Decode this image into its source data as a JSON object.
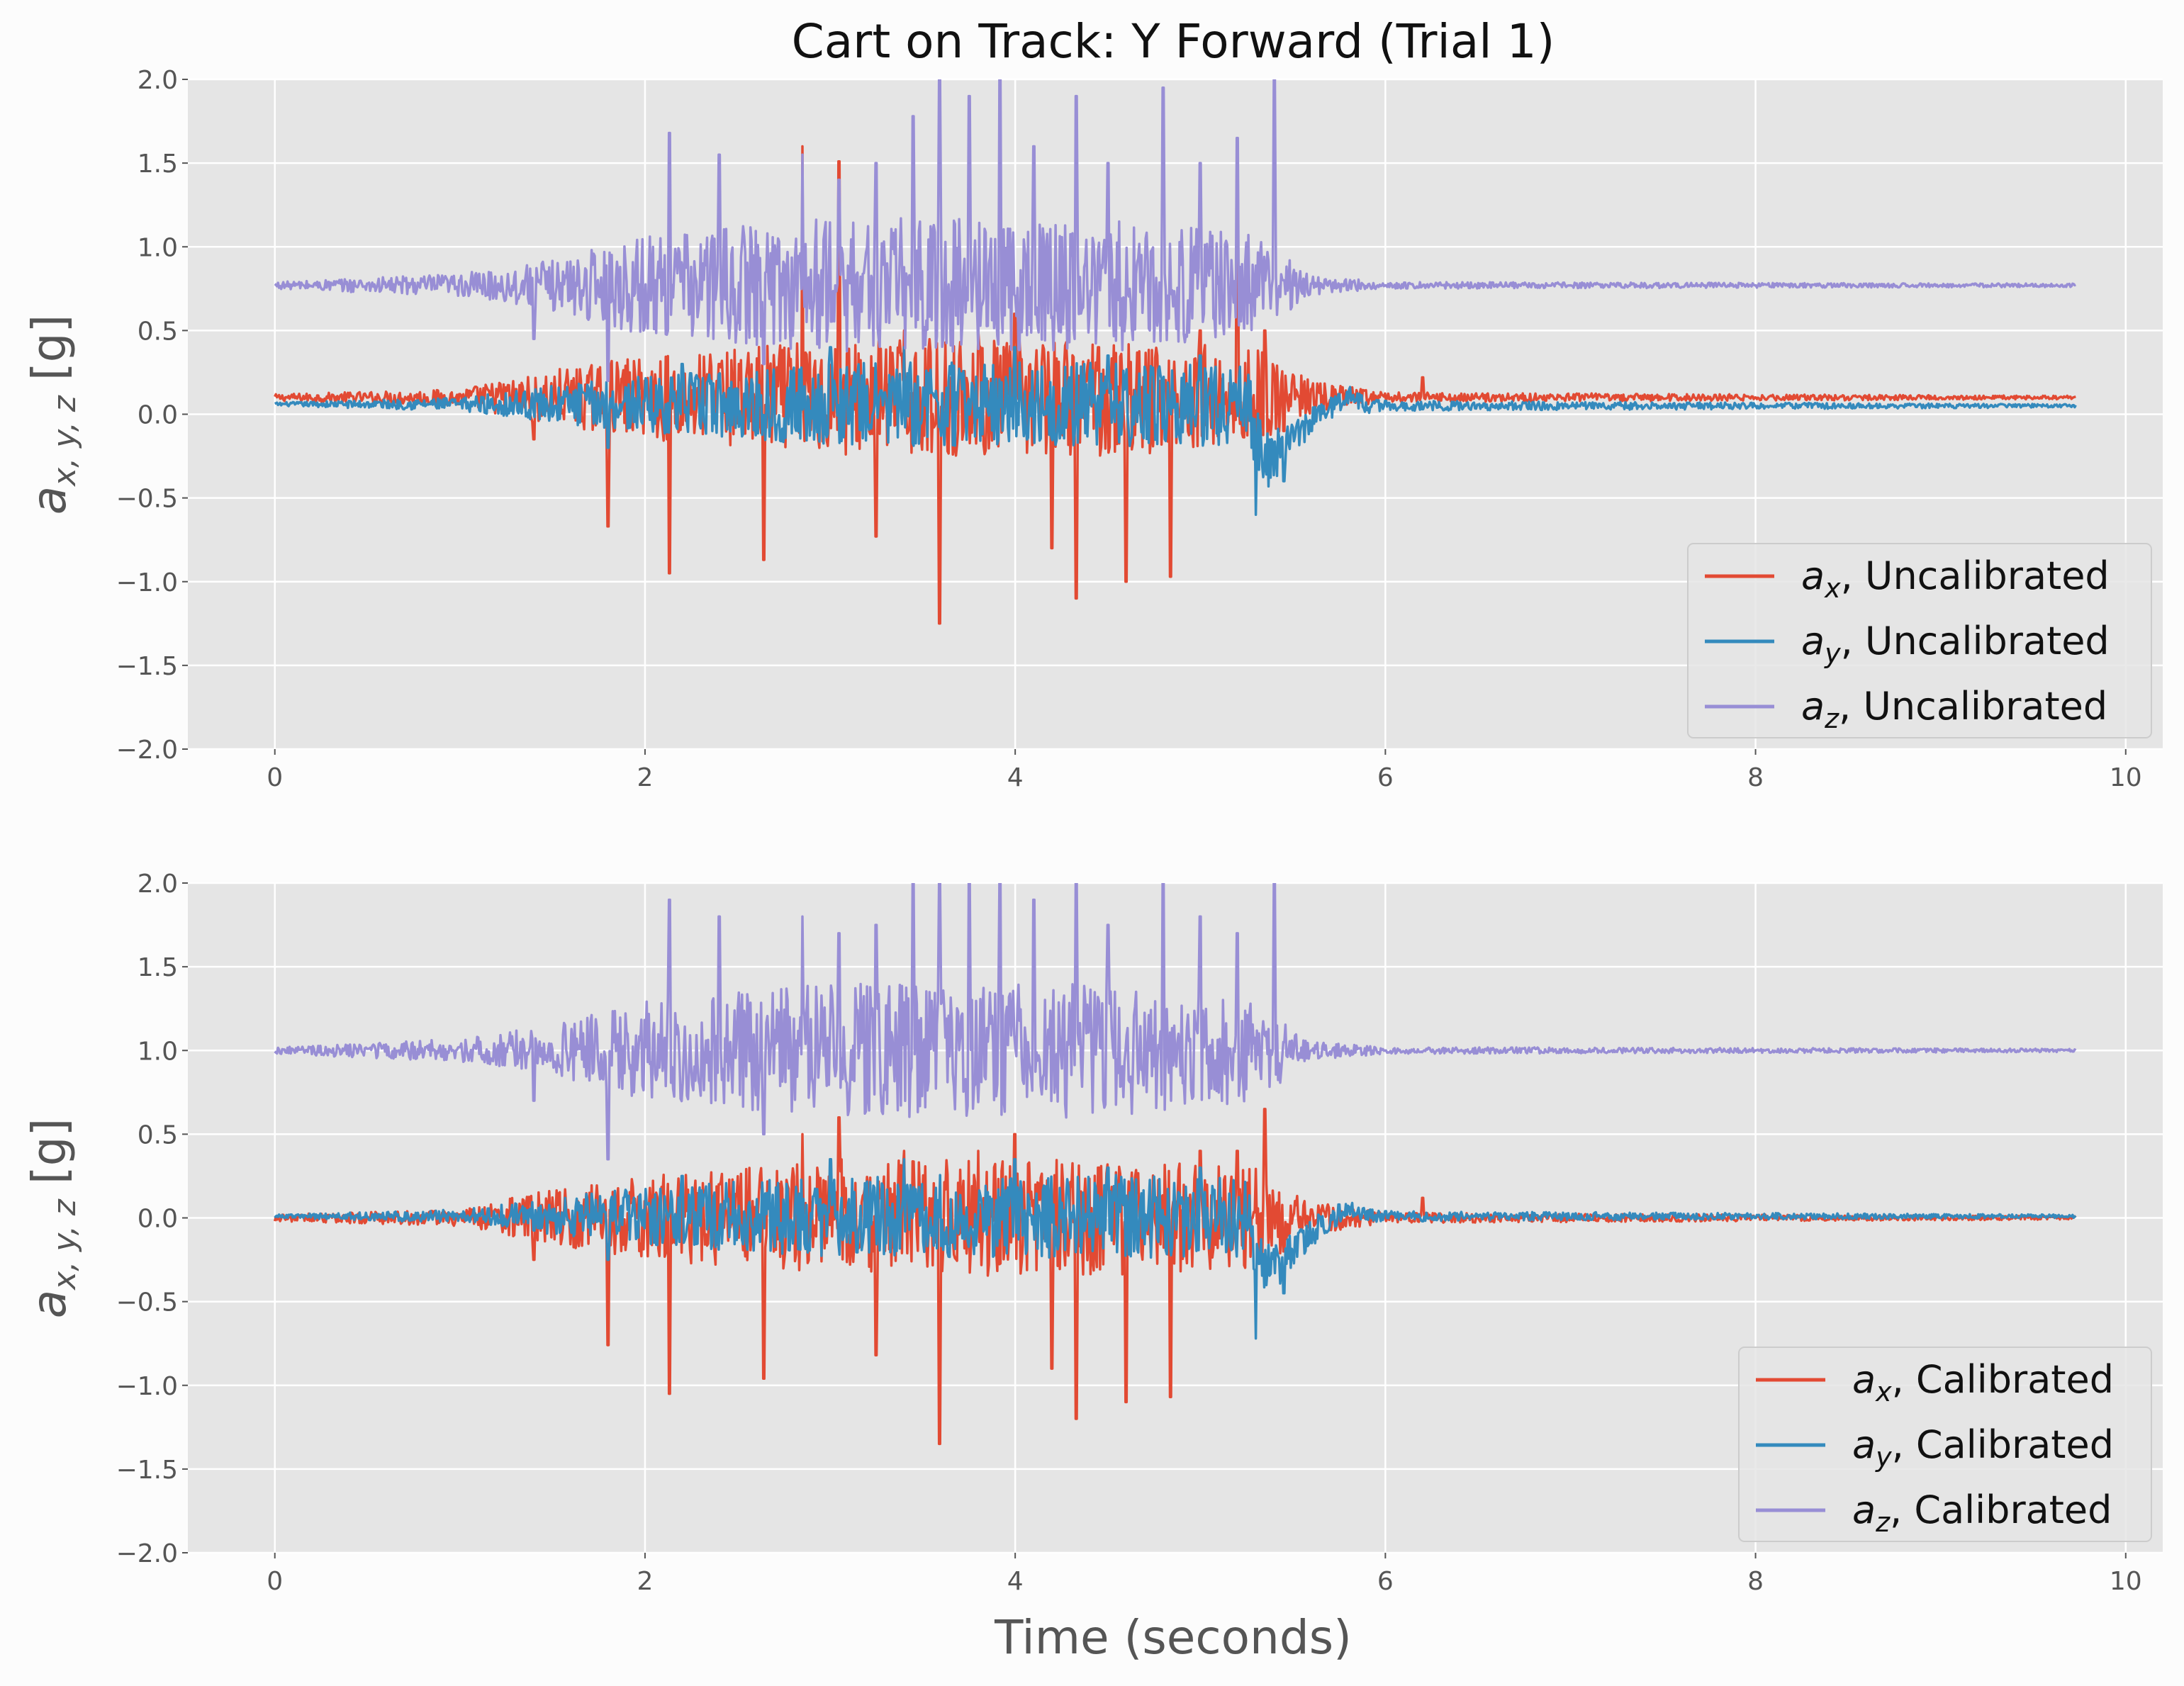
{
  "chart_data": [
    {
      "type": "line",
      "title": "Cart on Track: Y Forward (Trial 1)",
      "xlabel": "",
      "ylabel": "a_{x,y,z} [g]",
      "xlim": [
        -0.47,
        10.2
      ],
      "ylim": [
        -2.0,
        2.0
      ],
      "xticks": [
        0,
        2,
        4,
        6,
        8,
        10
      ],
      "yticks": [
        -2.0,
        -1.5,
        -1.0,
        -0.5,
        0.0,
        0.5,
        1.0,
        1.5,
        2.0
      ],
      "xtick_labels": [
        "0",
        "2",
        "4",
        "6",
        "8",
        "10"
      ],
      "ytick_labels": [
        "−2.0",
        "−1.5",
        "−1.0",
        "−0.5",
        "0.0",
        "0.5",
        "1.0",
        "1.5",
        "2.0"
      ],
      "grid": true,
      "legend_position": "lower-right",
      "series": [
        {
          "name": "a_x, Uncalibrated",
          "legend_main": "a",
          "legend_sub": "x",
          "legend_rest": ", Uncalibrated",
          "color": "#E24A33",
          "x": [
            0,
            0.5,
            1.0,
            1.3,
            1.4,
            1.7,
            1.8,
            2.0,
            2.13,
            2.4,
            2.64,
            2.85,
            3.05,
            3.25,
            3.4,
            3.59,
            3.8,
            4.0,
            4.2,
            4.33,
            4.45,
            4.6,
            4.84,
            5.0,
            5.2,
            5.35,
            5.45,
            5.6,
            5.8,
            6.1,
            6.2,
            6.5,
            7,
            8,
            9,
            9.73
          ],
          "y": [
            0.1,
            0.1,
            0.12,
            0.15,
            -0.15,
            0.25,
            -0.67,
            0.2,
            -0.95,
            0.3,
            -0.87,
            1.6,
            1.51,
            -0.73,
            0.5,
            -1.25,
            0.5,
            0.6,
            -0.8,
            -1.1,
            0.4,
            -1.0,
            -0.97,
            0.5,
            1.43,
            0.5,
            -0.1,
            0.15,
            0.1,
            0.1,
            0.22,
            0.1,
            0.1,
            0.1,
            0.1,
            0.1
          ],
          "amplitude_envelope": [
            [
              0,
              0.02
            ],
            [
              1.0,
              0.05
            ],
            [
              1.4,
              0.15
            ],
            [
              2.0,
              0.25
            ],
            [
              3.0,
              0.35
            ],
            [
              4.5,
              0.35
            ],
            [
              5.3,
              0.3
            ],
            [
              5.6,
              0.1
            ],
            [
              6.0,
              0.03
            ],
            [
              9.73,
              0.01
            ]
          ]
        },
        {
          "name": "a_y, Uncalibrated",
          "legend_main": "a",
          "legend_sub": "y",
          "legend_rest": ", Uncalibrated",
          "color": "#348ABD",
          "x": [
            0,
            1.0,
            1.8,
            2.2,
            3.0,
            3.4,
            4.0,
            4.5,
            5.0,
            5.3,
            5.45,
            5.6,
            5.75,
            6.0,
            6.2,
            7,
            8,
            9,
            9.73
          ],
          "y": [
            0.06,
            0.06,
            -0.2,
            0.3,
            0.4,
            0.4,
            0.4,
            0.35,
            0.35,
            -0.6,
            -0.4,
            -0.1,
            0.12,
            0.08,
            0.03,
            0.05,
            0.05,
            0.05,
            0.05
          ],
          "amplitude_envelope": [
            [
              0,
              0.01
            ],
            [
              1.0,
              0.04
            ],
            [
              1.8,
              0.15
            ],
            [
              3.0,
              0.25
            ],
            [
              5.2,
              0.25
            ],
            [
              5.5,
              0.1
            ],
            [
              6.0,
              0.03
            ],
            [
              9.73,
              0.01
            ]
          ]
        },
        {
          "name": "a_z, Uncalibrated",
          "legend_main": "a",
          "legend_sub": "z",
          "legend_rest": ", Uncalibrated",
          "color": "#988ED5",
          "x": [
            0,
            0.5,
            1.0,
            1.4,
            1.8,
            2.13,
            2.4,
            2.64,
            2.85,
            3.05,
            3.25,
            3.45,
            3.59,
            3.75,
            3.92,
            4.1,
            4.33,
            4.5,
            4.8,
            5.0,
            5.2,
            5.4,
            5.45,
            5.6,
            6.0,
            7,
            8,
            9,
            9.73
          ],
          "y": [
            0.77,
            0.78,
            0.8,
            0.45,
            0.2,
            1.68,
            1.55,
            0.3,
            1.55,
            1.4,
            1.5,
            1.78,
            2.0,
            1.9,
            2.0,
            1.6,
            1.9,
            1.5,
            1.95,
            1.5,
            1.65,
            2.0,
            0.8,
            0.78,
            0.77,
            0.77,
            0.77,
            0.77,
            0.77
          ],
          "amplitude_envelope": [
            [
              0,
              0.02
            ],
            [
              1.0,
              0.07
            ],
            [
              1.5,
              0.15
            ],
            [
              2.0,
              0.3
            ],
            [
              3.0,
              0.4
            ],
            [
              4.5,
              0.4
            ],
            [
              5.3,
              0.3
            ],
            [
              5.6,
              0.06
            ],
            [
              6.0,
              0.02
            ],
            [
              9.73,
              0.01
            ]
          ]
        }
      ]
    },
    {
      "type": "line",
      "title": "",
      "xlabel": "Time (seconds)",
      "ylabel": "a_{x,y,z} [g]",
      "xlim": [
        -0.47,
        10.2
      ],
      "ylim": [
        -2.0,
        2.0
      ],
      "xticks": [
        0,
        2,
        4,
        6,
        8,
        10
      ],
      "yticks": [
        -2.0,
        -1.5,
        -1.0,
        -0.5,
        0.0,
        0.5,
        1.0,
        1.5,
        2.0
      ],
      "xtick_labels": [
        "0",
        "2",
        "4",
        "6",
        "8",
        "10"
      ],
      "ytick_labels": [
        "−2.0",
        "−1.5",
        "−1.0",
        "−0.5",
        "0.0",
        "0.5",
        "1.0",
        "1.5",
        "2.0"
      ],
      "grid": true,
      "legend_position": "lower-right",
      "series": [
        {
          "name": "a_x, Calibrated",
          "legend_main": "a",
          "legend_sub": "x",
          "legend_rest": ", Calibrated",
          "color": "#E24A33",
          "x": [
            0,
            0.5,
            1.0,
            1.3,
            1.4,
            1.7,
            1.8,
            2.0,
            2.13,
            2.4,
            2.64,
            2.85,
            3.05,
            3.25,
            3.4,
            3.59,
            3.8,
            4.0,
            4.2,
            4.33,
            4.45,
            4.6,
            4.84,
            5.0,
            5.2,
            5.35,
            5.45,
            5.6,
            5.8,
            6.1,
            6.2,
            6.5,
            7,
            8,
            9,
            9.73
          ],
          "y": [
            0.0,
            0.0,
            0.02,
            0.05,
            -0.25,
            0.15,
            -0.76,
            0.1,
            -1.05,
            0.2,
            -0.96,
            0.5,
            0.6,
            -0.82,
            0.4,
            -1.35,
            0.4,
            0.5,
            -0.9,
            -1.2,
            0.3,
            -1.1,
            -1.07,
            0.4,
            0.4,
            0.65,
            -0.2,
            0.05,
            0.0,
            0.0,
            0.12,
            0.0,
            0.0,
            0.0,
            0.0,
            0.0
          ],
          "amplitude_envelope": [
            [
              0,
              0.02
            ],
            [
              1.0,
              0.05
            ],
            [
              1.4,
              0.15
            ],
            [
              2.0,
              0.25
            ],
            [
              3.0,
              0.35
            ],
            [
              4.5,
              0.35
            ],
            [
              5.3,
              0.3
            ],
            [
              5.6,
              0.1
            ],
            [
              6.0,
              0.03
            ],
            [
              9.73,
              0.01
            ]
          ]
        },
        {
          "name": "a_y, Calibrated",
          "legend_main": "a",
          "legend_sub": "y",
          "legend_rest": ", Calibrated",
          "color": "#348ABD",
          "x": [
            0,
            1.0,
            1.8,
            2.2,
            3.0,
            3.4,
            4.0,
            4.5,
            5.0,
            5.3,
            5.45,
            5.6,
            5.75,
            6.0,
            6.2,
            7,
            8,
            9,
            9.73
          ],
          "y": [
            0.01,
            0.01,
            -0.25,
            0.25,
            0.35,
            0.35,
            0.35,
            0.3,
            0.3,
            -0.72,
            -0.45,
            -0.15,
            0.08,
            0.04,
            -0.02,
            0.0,
            0.0,
            0.0,
            0.01
          ],
          "amplitude_envelope": [
            [
              0,
              0.01
            ],
            [
              1.0,
              0.04
            ],
            [
              1.8,
              0.15
            ],
            [
              3.0,
              0.25
            ],
            [
              5.2,
              0.25
            ],
            [
              5.5,
              0.1
            ],
            [
              6.0,
              0.03
            ],
            [
              9.73,
              0.01
            ]
          ]
        },
        {
          "name": "a_z, Calibrated",
          "legend_main": "a",
          "legend_sub": "z",
          "legend_rest": ", Calibrated",
          "color": "#988ED5",
          "x": [
            0,
            0.5,
            1.0,
            1.4,
            1.8,
            2.13,
            2.4,
            2.64,
            2.85,
            3.05,
            3.25,
            3.45,
            3.59,
            3.75,
            3.92,
            4.1,
            4.33,
            4.5,
            4.8,
            5.0,
            5.2,
            5.4,
            5.45,
            5.6,
            6.0,
            7,
            8,
            9,
            9.73
          ],
          "y": [
            1.0,
            1.01,
            1.02,
            0.7,
            0.35,
            1.9,
            1.8,
            0.5,
            1.8,
            1.7,
            1.75,
            2.0,
            2.0,
            2.0,
            2.0,
            1.9,
            2.0,
            1.75,
            2.0,
            1.8,
            1.7,
            2.0,
            1.05,
            1.0,
            1.0,
            1.0,
            1.0,
            1.0,
            1.0
          ],
          "amplitude_envelope": [
            [
              0,
              0.02
            ],
            [
              1.0,
              0.07
            ],
            [
              1.5,
              0.15
            ],
            [
              2.0,
              0.3
            ],
            [
              3.0,
              0.4
            ],
            [
              4.5,
              0.4
            ],
            [
              5.3,
              0.3
            ],
            [
              5.6,
              0.06
            ],
            [
              6.0,
              0.02
            ],
            [
              9.73,
              0.01
            ]
          ]
        }
      ]
    }
  ]
}
